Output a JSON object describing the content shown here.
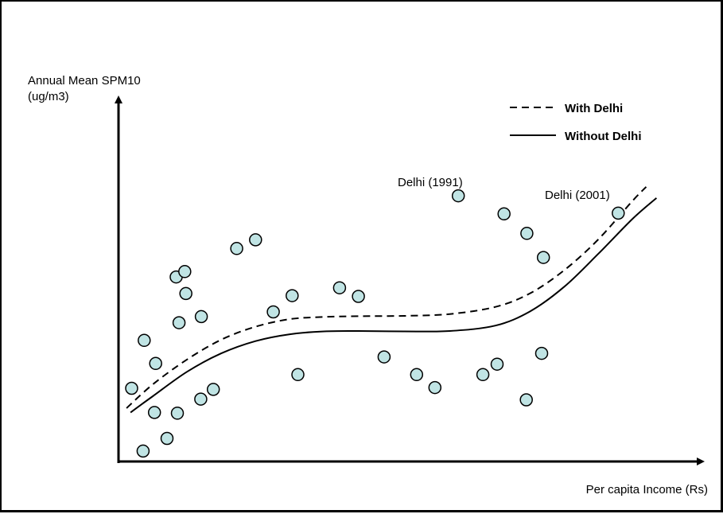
{
  "chart_data": {
    "type": "scatter",
    "title": "",
    "ylabel_line1": "Annual Mean SPM10",
    "ylabel_line2": "(ug/m3)",
    "xlabel": "Per capita Income (Rs)",
    "legend_placement": "top-right",
    "grid": false,
    "xlim": [
      0,
      100
    ],
    "ylim": [
      0,
      100
    ],
    "colors": {
      "marker_fill": "#c0e4e4",
      "marker_stroke": "#000000",
      "line": "#000000",
      "axis": "#000000"
    },
    "points": [
      [
        2.3,
        20.3
      ],
      [
        4.3,
        2.9
      ],
      [
        4.5,
        33.6
      ],
      [
        6.3,
        13.6
      ],
      [
        6.5,
        27.2
      ],
      [
        8.5,
        6.4
      ],
      [
        10.1,
        51.2
      ],
      [
        10.3,
        13.4
      ],
      [
        10.6,
        38.5
      ],
      [
        11.6,
        52.7
      ],
      [
        11.8,
        46.6
      ],
      [
        14.4,
        17.3
      ],
      [
        14.5,
        40.2
      ],
      [
        16.6,
        20.0
      ],
      [
        20.7,
        59.1
      ],
      [
        24.0,
        61.5
      ],
      [
        27.1,
        41.5
      ],
      [
        30.4,
        46.0
      ],
      [
        31.4,
        24.1
      ],
      [
        38.7,
        48.2
      ],
      [
        42.0,
        45.8
      ],
      [
        46.5,
        29.0
      ],
      [
        52.2,
        24.1
      ],
      [
        55.4,
        20.5
      ],
      [
        63.8,
        24.1
      ],
      [
        66.3,
        27.0
      ],
      [
        59.5,
        73.7
      ],
      [
        67.5,
        68.7
      ],
      [
        71.5,
        63.3
      ],
      [
        71.4,
        17.1
      ],
      [
        74.4,
        56.6
      ],
      [
        74.1,
        30.0
      ],
      [
        87.5,
        68.9
      ]
    ],
    "series": [
      {
        "name": "With Delhi",
        "style": "dashed",
        "x": [
          1.4,
          6,
          12,
          18,
          24,
          30,
          36,
          42,
          50,
          58,
          66,
          72,
          78,
          84,
          90,
          92.4
        ],
        "y": [
          14.8,
          21.4,
          28.3,
          33.8,
          37.4,
          39.5,
          40.1,
          40.3,
          40.4,
          40.9,
          42.9,
          46.6,
          53.0,
          61.6,
          72.3,
          76.2
        ]
      },
      {
        "name": "Without Delhi",
        "style": "solid",
        "x": [
          2.1,
          6,
          12,
          18,
          24,
          30,
          36,
          42,
          50,
          58,
          66,
          72,
          78,
          84,
          90,
          94.2
        ],
        "y": [
          13.6,
          18.1,
          24.9,
          30.0,
          33.4,
          35.3,
          36.1,
          36.2,
          36.1,
          36.2,
          37.7,
          41.6,
          48.4,
          57.6,
          67.3,
          73.1
        ]
      }
    ],
    "annotations": [
      {
        "text": "Delhi (1991)",
        "x": 59.5,
        "y": 73.7
      },
      {
        "text": "Delhi (2001)",
        "x": 87.5,
        "y": 68.9
      }
    ]
  }
}
